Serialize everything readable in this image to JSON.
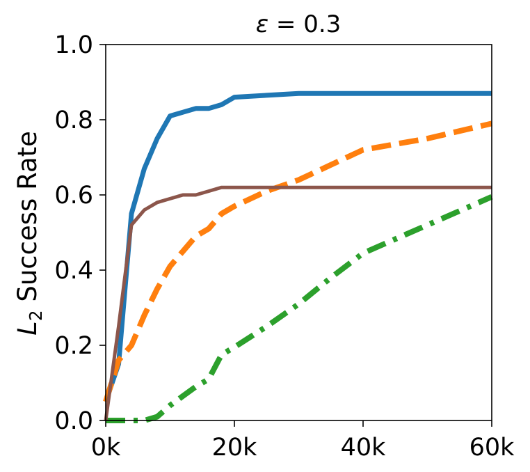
{
  "chart_data": {
    "type": "line",
    "title": {
      "symbol": "ε",
      "rest": " = 0.3"
    },
    "ylabel": {
      "main": "L",
      "sub": "2",
      "rest": " Success Rate"
    },
    "xlabel": "",
    "xlim": [
      0,
      60000
    ],
    "ylim": [
      0,
      1.0
    ],
    "x_ticks": [
      {
        "value": 0,
        "label": "0k"
      },
      {
        "value": 20000,
        "label": "20k"
      },
      {
        "value": 40000,
        "label": "40k"
      },
      {
        "value": 60000,
        "label": "60k"
      }
    ],
    "y_ticks": [
      {
        "value": 0.0,
        "label": "0.0"
      },
      {
        "value": 0.2,
        "label": "0.2"
      },
      {
        "value": 0.4,
        "label": "0.4"
      },
      {
        "value": 0.6,
        "label": "0.6"
      },
      {
        "value": 0.8,
        "label": "0.8"
      },
      {
        "value": 1.0,
        "label": "1.0"
      }
    ],
    "grid": false,
    "legend": "none",
    "series": [
      {
        "color": "#1f77b4",
        "style": "solid",
        "width": 7,
        "x": [
          0,
          2000,
          4000,
          6000,
          8000,
          10000,
          12000,
          14000,
          16000,
          18000,
          20000,
          25000,
          30000,
          40000,
          50000,
          60000
        ],
        "y": [
          0.05,
          0.15,
          0.55,
          0.67,
          0.75,
          0.81,
          0.82,
          0.83,
          0.83,
          0.84,
          0.86,
          0.865,
          0.87,
          0.87,
          0.87,
          0.87
        ]
      },
      {
        "color": "#ff7f0e",
        "style": "dashed",
        "width": 8,
        "x": [
          0,
          2000,
          4000,
          6000,
          8000,
          10000,
          12000,
          14000,
          16000,
          18000,
          20000,
          25000,
          30000,
          35000,
          40000,
          50000,
          60000
        ],
        "y": [
          0.05,
          0.16,
          0.2,
          0.28,
          0.35,
          0.41,
          0.45,
          0.49,
          0.51,
          0.55,
          0.57,
          0.61,
          0.64,
          0.68,
          0.72,
          0.75,
          0.79
        ]
      },
      {
        "color": "#2ca02c",
        "style": "dashdot",
        "width": 8,
        "x": [
          0,
          4000,
          6000,
          8000,
          10000,
          12000,
          14000,
          16000,
          18000,
          20000,
          25000,
          30000,
          35000,
          40000,
          50000,
          60000
        ],
        "y": [
          0.0,
          0.0,
          0.0,
          0.01,
          0.04,
          0.065,
          0.09,
          0.11,
          0.175,
          0.195,
          0.25,
          0.31,
          0.38,
          0.445,
          0.52,
          0.595
        ]
      },
      {
        "color": "#8c564b",
        "style": "solid",
        "width": 5,
        "x": [
          0,
          2000,
          4000,
          6000,
          8000,
          10000,
          12000,
          14000,
          16000,
          18000,
          20000,
          30000,
          40000,
          50000,
          60000
        ],
        "y": [
          0.0,
          0.25,
          0.52,
          0.56,
          0.58,
          0.59,
          0.6,
          0.6,
          0.61,
          0.62,
          0.62,
          0.62,
          0.62,
          0.62,
          0.62
        ]
      }
    ]
  }
}
